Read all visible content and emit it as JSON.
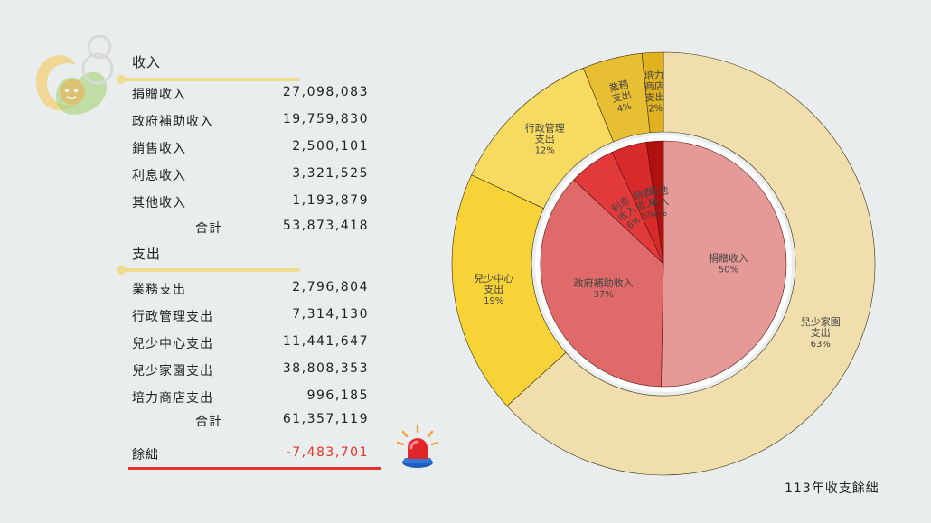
{
  "income": {
    "title": "收入",
    "items": [
      {
        "label": "捐贈收入",
        "value": "27,098,083"
      },
      {
        "label": "政府補助收入",
        "value": "19,759,830"
      },
      {
        "label": "銷售收入",
        "value": "2,500,101"
      },
      {
        "label": "利息收入",
        "value": "3,321,525"
      },
      {
        "label": "其他收入",
        "value": "1,193,879"
      }
    ],
    "total_label": "合計",
    "total_value": "53,873,418"
  },
  "expense": {
    "title": "支出",
    "items": [
      {
        "label": "業務支出",
        "value": "2,796,804"
      },
      {
        "label": "行政管理支出",
        "value": "7,314,130"
      },
      {
        "label": "兒少中心支出",
        "value": "11,441,647"
      },
      {
        "label": "兒少家園支出",
        "value": "38,808,353"
      },
      {
        "label": "培力商店支出",
        "value": "996,185"
      }
    ],
    "total_label": "合計",
    "total_value": "61,357,119"
  },
  "net": {
    "label": "餘絀",
    "value": "-7,483,701"
  },
  "footer": {
    "caption": "113年收支餘絀"
  },
  "colors": {
    "accent_rule": "#f0dc8e",
    "negative": "#e8312a",
    "inner_slices": [
      "#e69a98",
      "#e06a6a",
      "#e23a3a",
      "#d72a2a",
      "#b0100e"
    ],
    "outer_slices": [
      "#f0dfad",
      "#f7d338",
      "#f7da60",
      "#e8bf32",
      "#e0b21f"
    ]
  },
  "chart_data": {
    "type": "pie",
    "rings": [
      {
        "name": "收入",
        "slices": [
          {
            "label": [
              "捐贈收入"
            ],
            "pct": "50%",
            "value": 27098083
          },
          {
            "label": [
              "政府補助收入"
            ],
            "pct": "37%",
            "value": 19759830
          },
          {
            "label": [
              "利息",
              "收入"
            ],
            "pct": "6%",
            "value": 3321525
          },
          {
            "label": [
              "銷售",
              "收入"
            ],
            "pct": "5%",
            "value": 2500101
          },
          {
            "label": [
              "其他",
              "收入"
            ],
            "pct": "2%",
            "value": 1193879
          }
        ]
      },
      {
        "name": "支出",
        "slices": [
          {
            "label": [
              "兒少家園",
              "支出"
            ],
            "pct": "63%",
            "value": 38808353
          },
          {
            "label": [
              "兒少中心",
              "支出"
            ],
            "pct": "19%",
            "value": 11441647
          },
          {
            "label": [
              "行政管理",
              "支出"
            ],
            "pct": "12%",
            "value": 7314130
          },
          {
            "label": [
              "業務",
              "支出"
            ],
            "pct": "4%",
            "value": 2796804
          },
          {
            "label": [
              "培力",
              "商店",
              "支出"
            ],
            "pct": "2%",
            "value": 996185
          }
        ]
      }
    ]
  }
}
